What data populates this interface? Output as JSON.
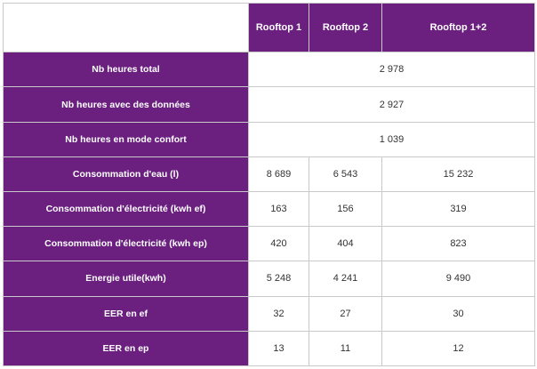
{
  "columns": [
    "Rooftop 1",
    "Rooftop 2",
    "Rooftop 1+2"
  ],
  "rows": [
    {
      "label": "Nb heures total",
      "merged": "2 978"
    },
    {
      "label": "Nb heures avec des données",
      "merged": "2 927"
    },
    {
      "label": "Nb heures en mode confort",
      "merged": "1 039"
    },
    {
      "label": "Consommation d'eau (l)",
      "values": [
        "8 689",
        "6 543",
        "15 232"
      ]
    },
    {
      "label": "Consommation d'électricité (kwh ef)",
      "values": [
        "163",
        "156",
        "319"
      ]
    },
    {
      "label": "Consommation d'électricité (kwh ep)",
      "values": [
        "420",
        "404",
        "823"
      ]
    },
    {
      "label": "Energie utile(kwh)",
      "values": [
        "5 248",
        "4 241",
        "9 490"
      ]
    },
    {
      "label": "EER en ef",
      "values": [
        "32",
        "27",
        "30"
      ]
    },
    {
      "label": "EER en ep",
      "values": [
        "13",
        "11",
        "12"
      ]
    }
  ],
  "colors": {
    "header_bg": "#6b2080",
    "header_text": "#ffffff",
    "border": "#c9c9c9"
  }
}
